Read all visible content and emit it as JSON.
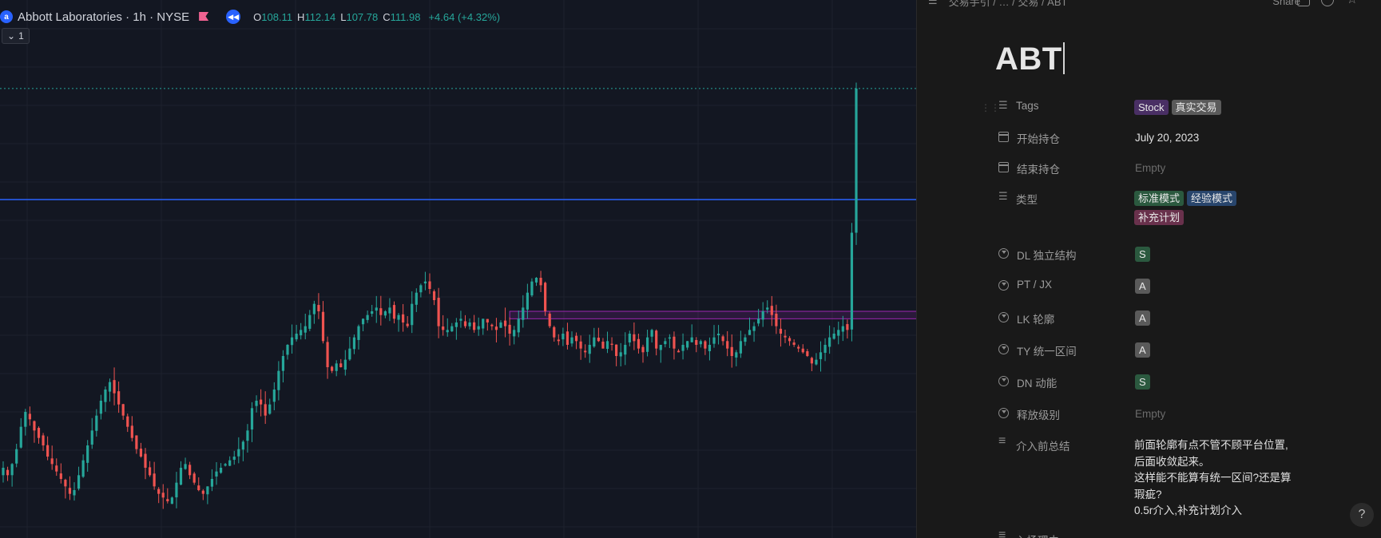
{
  "chart": {
    "symbol_icon": "symbol-logo-icon",
    "title": "Abbott Laboratories · 1h · NYSE",
    "ohlc": {
      "o_label": "O",
      "o": "108.11",
      "h_label": "H",
      "h": "112.14",
      "l_label": "L",
      "l": "107.78",
      "c_label": "C",
      "c": "111.98",
      "change": "+4.64 (+4.32%)"
    },
    "collapse_label": "1",
    "colors": {
      "up": "#26a69a",
      "down": "#ef5350",
      "bg": "#131722",
      "hline": "#2962ff",
      "box": "#9c27b0",
      "dotted": "#26a69a"
    }
  },
  "chart_data": {
    "type": "candlestick",
    "title": "Abbott Laboratories · 1h · NYSE",
    "xlabel": "",
    "ylabel": "",
    "grid": true,
    "ylim": [
      100,
      113.5
    ],
    "annotations": {
      "horizontal_line": 109.0,
      "dotted_line": 111.98,
      "zone": {
        "low": 105.8,
        "high": 106.0,
        "start_index": 114,
        "end_index": 236
      }
    },
    "last_candle": {
      "open": 108.11,
      "high": 112.14,
      "low": 107.78,
      "close": 111.98
    },
    "close_path": [
      101.8,
      101.6,
      101.9,
      102.3,
      102.9,
      103.3,
      103.1,
      102.8,
      102.6,
      102.4,
      102.1,
      101.9,
      101.7,
      101.5,
      101.3,
      101.1,
      101.2,
      101.6,
      102.0,
      102.4,
      102.8,
      103.2,
      103.6,
      103.9,
      104.1,
      103.8,
      103.5,
      103.2,
      102.9,
      102.6,
      102.3,
      102.1,
      101.8,
      101.6,
      101.3,
      101.1,
      101.0,
      100.9,
      101.0,
      101.4,
      101.8,
      101.9,
      101.6,
      101.4,
      101.2,
      101.1,
      101.3,
      101.5,
      101.7,
      101.8,
      101.9,
      102.0,
      102.1,
      102.3,
      102.5,
      102.8,
      103.4,
      103.6,
      103.5,
      103.2,
      103.5,
      103.9,
      104.4,
      104.8,
      105.1,
      105.3,
      105.4,
      105.5,
      105.6,
      105.9,
      106.2,
      106.0,
      105.2,
      104.5,
      104.4,
      104.6,
      104.5,
      104.7,
      105.0,
      105.3,
      105.6,
      105.8,
      105.9,
      106.0,
      106.1,
      105.9,
      106.0,
      106.1,
      105.8,
      105.9,
      105.7,
      105.6,
      106.2,
      106.5,
      106.7,
      106.8,
      106.6,
      106.3,
      105.6,
      105.5,
      105.5,
      105.6,
      105.7,
      105.8,
      105.6,
      105.7,
      105.5,
      105.6,
      105.8,
      105.7,
      105.6,
      105.5,
      105.7,
      105.6,
      105.4,
      105.5,
      105.8,
      106.1,
      106.5,
      106.8,
      106.9,
      106.7,
      106.0,
      105.6,
      105.3,
      105.2,
      105.4,
      105.1,
      105.3,
      105.2,
      105.0,
      104.9,
      105.1,
      105.3,
      105.2,
      105.0,
      105.2,
      105.1,
      104.8,
      104.9,
      105.1,
      105.4,
      105.2,
      105.0,
      104.9,
      105.3,
      105.5,
      105.0,
      105.1,
      105.2,
      105.3,
      105.0,
      104.9,
      105.1,
      105.2,
      105.3,
      105.1,
      105.2,
      105.0,
      105.1,
      105.3,
      105.4,
      105.2,
      105.0,
      104.8,
      104.9,
      105.2,
      105.3,
      105.5,
      105.6,
      105.8,
      106.0,
      106.1,
      105.9,
      105.6,
      105.4,
      105.3,
      105.2,
      105.1,
      105.0,
      104.9,
      104.8,
      104.6,
      104.7,
      104.9,
      105.1,
      105.3,
      105.4,
      105.5,
      105.6,
      105.5,
      108.11,
      111.98
    ]
  },
  "notion": {
    "breadcrumb": "交易手引 / … / 交易 / ABT",
    "share_label": "Share",
    "title": "ABT",
    "props": [
      {
        "name": "Tags",
        "icon": "list-icon",
        "tags": [
          {
            "text": "Stock",
            "color": "#492f64"
          },
          {
            "text": "真实交易",
            "color": "#5a5a5a"
          }
        ]
      },
      {
        "name": "开始持仓",
        "icon": "calendar-icon",
        "value": "July 20, 2023"
      },
      {
        "name": "结束持仓",
        "icon": "calendar-icon",
        "value": "Empty",
        "empty": true
      },
      {
        "name": "类型",
        "icon": "list-icon",
        "tags": [
          {
            "text": "标准模式",
            "color": "#2b593f"
          },
          {
            "text": "经验模式",
            "color": "#28456c"
          },
          {
            "text": "补充计划",
            "color": "#69314c"
          }
        ]
      },
      {
        "name": "DL 独立结构",
        "icon": "select-icon",
        "tags": [
          {
            "text": "S",
            "color": "#2b593f"
          }
        ]
      },
      {
        "name": "PT / JX",
        "icon": "select-icon",
        "tags": [
          {
            "text": "A",
            "color": "#5a5a5a"
          }
        ]
      },
      {
        "name": "LK 轮廓",
        "icon": "select-icon",
        "tags": [
          {
            "text": "A",
            "color": "#5a5a5a"
          }
        ]
      },
      {
        "name": "TY 统一区间",
        "icon": "select-icon",
        "tags": [
          {
            "text": "A",
            "color": "#5a5a5a"
          }
        ]
      },
      {
        "name": "DN 动能",
        "icon": "select-icon",
        "tags": [
          {
            "text": "S",
            "color": "#2b593f"
          }
        ]
      },
      {
        "name": "释放级别",
        "icon": "select-icon",
        "value": "Empty",
        "empty": true
      },
      {
        "name": "介入前总结",
        "icon": "text-icon",
        "lines": [
          "前面轮廓有点不管不顾平台位置,",
          "后面收敛起来。",
          "这样能不能算有统一区间?还是算",
          "瑕疵?",
          "0.5r介入,补充计划介入"
        ]
      },
      {
        "name": "入场理由",
        "icon": "text-icon",
        "value": ""
      }
    ],
    "help_label": "?"
  }
}
